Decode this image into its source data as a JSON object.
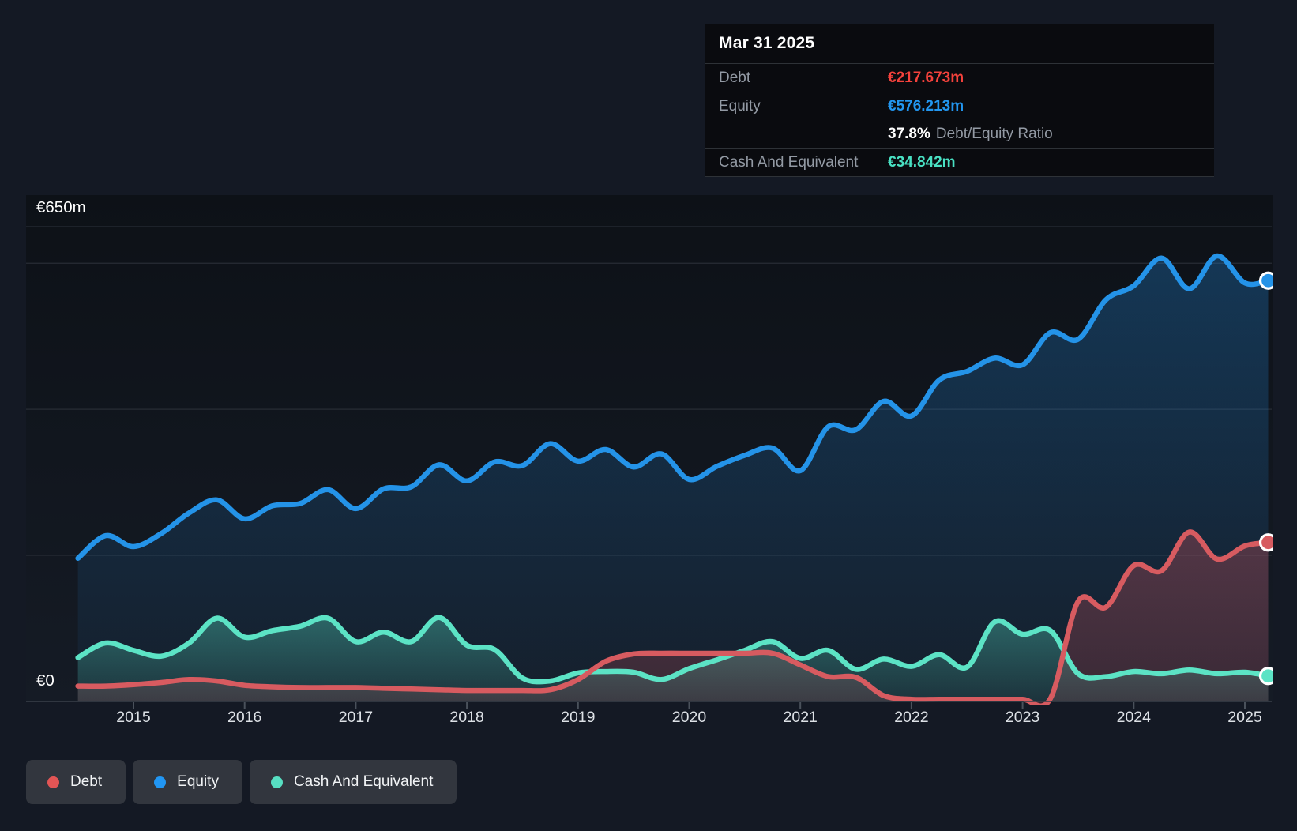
{
  "tooltip": {
    "date": "Mar 31 2025",
    "debt_label": "Debt",
    "debt_value": "€217.673m",
    "equity_label": "Equity",
    "equity_value": "€576.213m",
    "ratio_value": "37.8%",
    "ratio_label": "Debt/Equity Ratio",
    "cash_label": "Cash And Equivalent",
    "cash_value": "€34.842m"
  },
  "legend": {
    "debt": "Debt",
    "equity": "Equity",
    "cash": "Cash And Equivalent"
  },
  "colors": {
    "debt": "#d75b60",
    "equity": "#2493e8",
    "cash": "#5ce3c5",
    "debt_dot": "#e25555",
    "equity_dot": "#2196f3",
    "cash_dot": "#57dfc2",
    "gridline": "#272c35",
    "axis_text": "#dde1e6"
  },
  "chart_data": {
    "type": "area",
    "title": "Debt to Equity history",
    "xlabel": "",
    "ylabel": "",
    "ylim": [
      0,
      650
    ],
    "x_range": [
      2014.5,
      2025.21
    ],
    "grid": true,
    "legend_position": "bottom",
    "y_labels": [
      {
        "text": "€650m",
        "value": 650
      },
      {
        "text": "€0",
        "value": 0
      }
    ],
    "gridline_values": [
      650,
      600,
      400,
      200
    ],
    "x_tick_labels": [
      "2015",
      "2016",
      "2017",
      "2018",
      "2019",
      "2020",
      "2021",
      "2022",
      "2023",
      "2024",
      "2025"
    ],
    "x_tick_years": [
      2015,
      2016,
      2017,
      2018,
      2019,
      2020,
      2021,
      2022,
      2023,
      2024,
      2025
    ],
    "x": [
      2014.5,
      2014.75,
      2015.0,
      2015.25,
      2015.5,
      2015.75,
      2016.0,
      2016.25,
      2016.5,
      2016.75,
      2017.0,
      2017.25,
      2017.5,
      2017.75,
      2018.0,
      2018.25,
      2018.5,
      2018.75,
      2019.0,
      2019.25,
      2019.5,
      2019.75,
      2020.0,
      2020.25,
      2020.5,
      2020.75,
      2021.0,
      2021.25,
      2021.5,
      2021.75,
      2022.0,
      2022.25,
      2022.5,
      2022.75,
      2023.0,
      2023.25,
      2023.5,
      2023.75,
      2024.0,
      2024.25,
      2024.5,
      2024.75,
      2025.0,
      2025.21
    ],
    "series": [
      {
        "name": "Equity",
        "color": "#2493e8",
        "fill_from": "rgba(36,140,225,0.30)",
        "fill_to": "rgba(36,140,225,0.04)",
        "end_value_label": "€576.213m",
        "values": [
          196,
          227,
          212,
          230,
          258,
          276,
          250,
          268,
          271,
          290,
          264,
          291,
          294,
          324,
          302,
          328,
          323,
          353,
          329,
          345,
          321,
          339,
          304,
          322,
          337,
          347,
          316,
          376,
          372,
          411,
          391,
          440,
          452,
          470,
          461,
          505,
          496,
          550,
          569,
          607,
          565,
          610,
          573,
          576.213
        ]
      },
      {
        "name": "Debt",
        "color": "#d75b60",
        "fill_from": "rgba(214,84,92,0.32)",
        "fill_to": "rgba(214,84,92,0.18)",
        "end_value_label": "€217.673m",
        "values": [
          21,
          21,
          23,
          26,
          30,
          28,
          22,
          20,
          19,
          19,
          19,
          18,
          17,
          16,
          15,
          15,
          15,
          16,
          30,
          55,
          65,
          66,
          66,
          66,
          66,
          66,
          50,
          34,
          33,
          8,
          3,
          3,
          3,
          3,
          3,
          4,
          137,
          129,
          186,
          179,
          232,
          195,
          213,
          217.673
        ]
      },
      {
        "name": "Cash And Equivalent",
        "color": "#5ce3c5",
        "fill_from": "rgba(86,224,196,0.35)",
        "fill_to": "rgba(86,224,196,0.10)",
        "end_value_label": "€34.842m",
        "values": [
          60,
          80,
          70,
          62,
          80,
          114,
          88,
          97,
          103,
          114,
          82,
          95,
          82,
          115,
          77,
          71,
          32,
          28,
          39,
          41,
          40,
          30,
          45,
          57,
          70,
          82,
          59,
          70,
          44,
          58,
          48,
          64,
          47,
          109,
          92,
          97,
          38,
          34,
          41,
          38,
          43,
          38,
          40,
          34.842
        ]
      }
    ]
  }
}
